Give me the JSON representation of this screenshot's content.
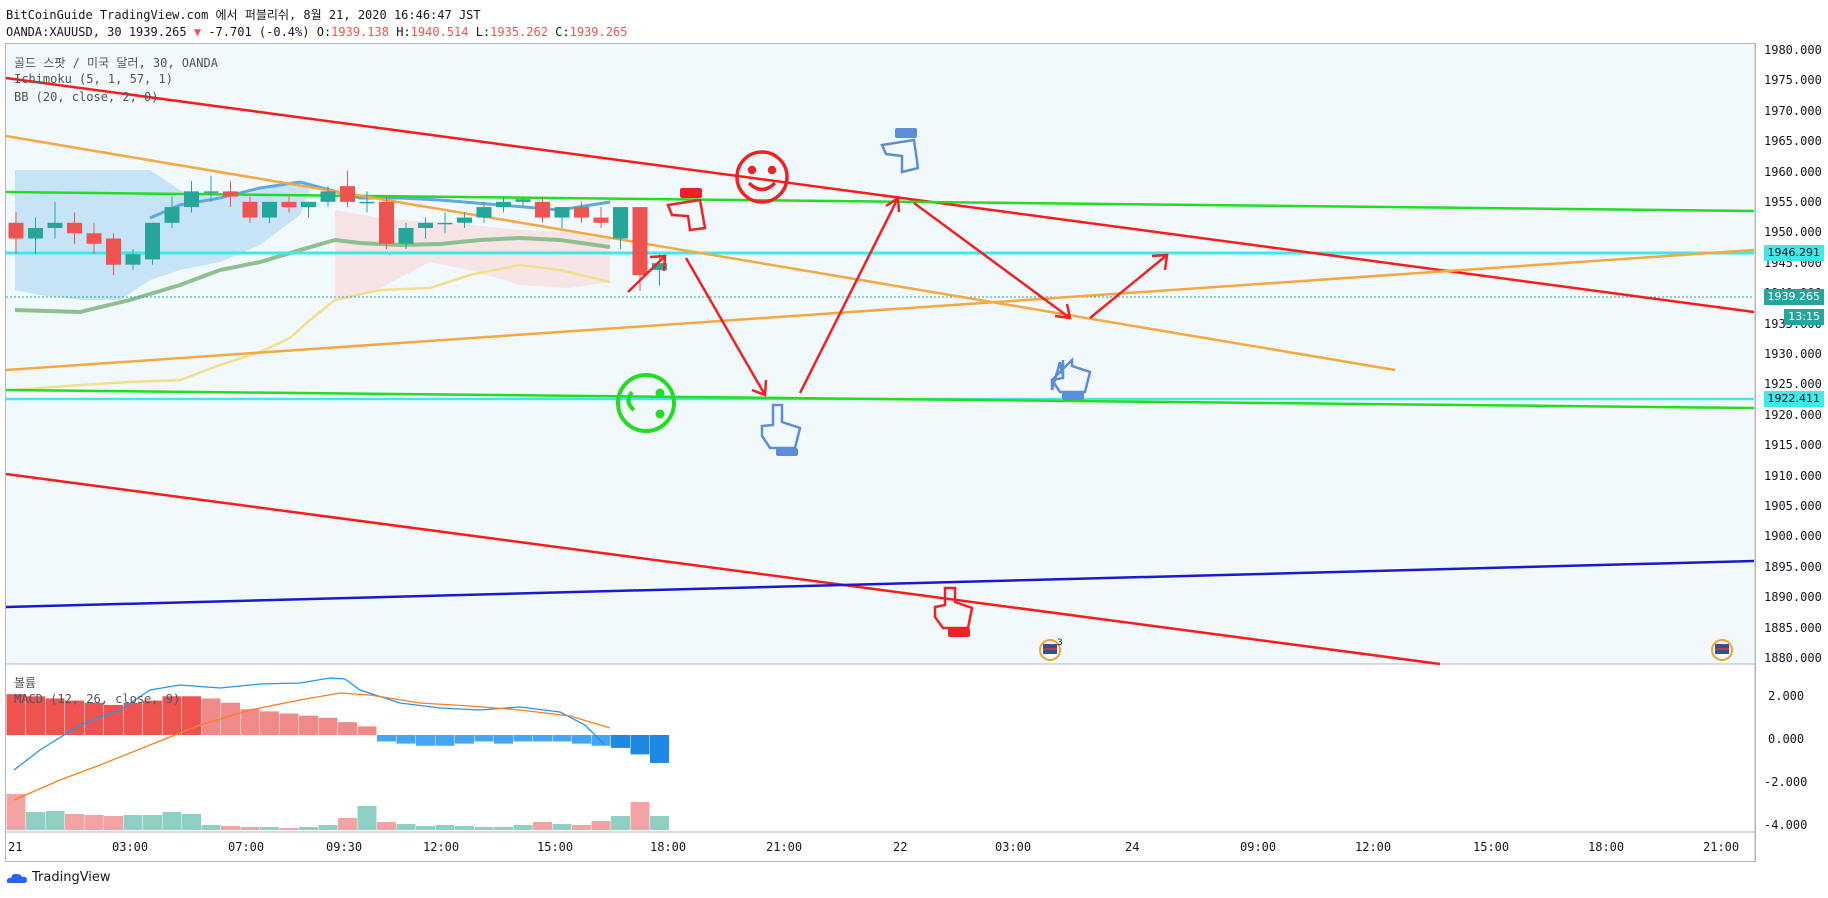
{
  "header": {
    "line1": "BitCoinGuide TradingView.com 에서 퍼블리쉬, 8월 21, 2020 16:46:47 JST",
    "symbol": "OANDA:XAUUSD, 30",
    "last": "1939.265",
    "change_arrow": "▼",
    "change": "-7.701 (-0.4%)",
    "o_label": "O:",
    "o": "1939.138",
    "h_label": "H:",
    "h": "1940.514",
    "l_label": "L:",
    "l": "1935.262",
    "c_label": "C:",
    "c": "1939.265"
  },
  "legend": {
    "title": "골드 스팟 / 미국 달러, 30, OANDA",
    "ichimoku": "Ichimoku (5, 1, 57, 1)",
    "bb": "BB (20, close, 2, 0)",
    "volume": "볼륨",
    "macd": "MACD (12, 26, close, 9)"
  },
  "price_axis": {
    "ticks": [
      "1980.000",
      "1975.000",
      "1970.000",
      "1965.000",
      "1960.000",
      "1955.000",
      "1950.000",
      "1945.000",
      "1940.000",
      "1935.000",
      "1930.000",
      "1925.000",
      "1920.000",
      "1915.000",
      "1910.000",
      "1905.000",
      "1900.000",
      "1895.000",
      "1890.000",
      "1885.000",
      "1880.000"
    ],
    "tags": {
      "resistance": "1946.291",
      "last": "1939.265",
      "countdown": "13:15",
      "support": "1922.411"
    }
  },
  "macd_axis": {
    "ticks": [
      "2.000",
      "0.000",
      "-2.000",
      "-4.000"
    ]
  },
  "time_axis": {
    "ticks": [
      "21",
      "03:00",
      "07:00",
      "09:30",
      "12:00",
      "15:00",
      "18:00",
      "21:00",
      "22",
      "03:00",
      "24",
      "09:00",
      "12:00",
      "15:00",
      "18:00",
      "21:00"
    ]
  },
  "events": {
    "badge_count": "3"
  },
  "branding": {
    "logo": "TradingView"
  },
  "colors": {
    "up": "#26a69a",
    "down": "#ef5350",
    "red_line": "#ff1a1a",
    "green_line": "#22dd22",
    "cyan_line": "#40e8e8",
    "orange_line": "#f5a742",
    "blue_line": "#1a1acc",
    "cloud": "#bfe0f5",
    "bb_fill": "#f6dfe0",
    "hand_blue": "#5b8dd9",
    "hand_red": "#ee2222"
  },
  "chart_data": {
    "type": "candlestick",
    "symbol": "OANDA:XAUUSD",
    "interval": "30",
    "ylim": [
      1880,
      1980
    ],
    "macd_ylim": [
      -4,
      3
    ],
    "candles": [
      [
        1947,
        1949,
        1941,
        1944
      ],
      [
        1944,
        1948,
        1941,
        1946
      ],
      [
        1946,
        1951,
        1944,
        1947
      ],
      [
        1947,
        1949,
        1943,
        1945
      ],
      [
        1945,
        1947,
        1941,
        1943
      ],
      [
        1944,
        1945,
        1937,
        1939
      ],
      [
        1939,
        1942,
        1938,
        1941
      ],
      [
        1940,
        1947,
        1939,
        1947
      ],
      [
        1947,
        1952,
        1946,
        1950
      ],
      [
        1950,
        1955,
        1949,
        1953
      ],
      [
        1953,
        1956,
        1951,
        1953
      ],
      [
        1953,
        1955,
        1950,
        1952
      ],
      [
        1951,
        1952,
        1947,
        1948
      ],
      [
        1948,
        1951,
        1947,
        1951
      ],
      [
        1951,
        1952,
        1949,
        1950
      ],
      [
        1950,
        1951,
        1948,
        1951
      ],
      [
        1951,
        1954,
        1950,
        1953
      ],
      [
        1954,
        1957,
        1950,
        1951
      ],
      [
        1951,
        1953,
        1949,
        1951
      ],
      [
        1951,
        1952,
        1942,
        1943
      ],
      [
        1943,
        1947,
        1942,
        1946
      ],
      [
        1946,
        1948,
        1944,
        1947
      ],
      [
        1947,
        1949,
        1945,
        1947
      ],
      [
        1947,
        1949,
        1946,
        1948
      ],
      [
        1948,
        1951,
        1947,
        1950
      ],
      [
        1950,
        1952,
        1949,
        1951
      ],
      [
        1951,
        1952,
        1950,
        1951.5
      ],
      [
        1951,
        1952,
        1947,
        1948
      ],
      [
        1948,
        1950,
        1946,
        1950
      ],
      [
        1950,
        1951,
        1947,
        1948
      ],
      [
        1948,
        1950,
        1946,
        1947
      ],
      [
        1944,
        1950,
        1942,
        1950
      ],
      [
        1950,
        1950,
        1934,
        1937
      ],
      [
        1938,
        1941,
        1935,
        1939.3
      ]
    ],
    "macd_hist": [
      1.9,
      1.8,
      1.7,
      1.6,
      1.5,
      1.4,
      1.5,
      1.6,
      1.8,
      1.8,
      1.7,
      1.5,
      1.2,
      1.1,
      1.0,
      0.9,
      0.8,
      0.6,
      0.4,
      -0.3,
      -0.4,
      -0.5,
      -0.5,
      -0.4,
      -0.3,
      -0.4,
      -0.3,
      -0.3,
      -0.3,
      -0.4,
      -0.5,
      -0.6,
      -0.9,
      -1.3
    ],
    "volume": [
      36,
      18,
      19,
      16,
      15,
      14,
      15,
      15,
      18,
      16,
      5,
      4,
      3,
      3,
      2,
      3,
      5,
      12,
      24,
      8,
      6,
      4,
      5,
      4,
      3,
      3,
      5,
      8,
      6,
      5,
      9,
      14,
      28,
      14
    ]
  }
}
